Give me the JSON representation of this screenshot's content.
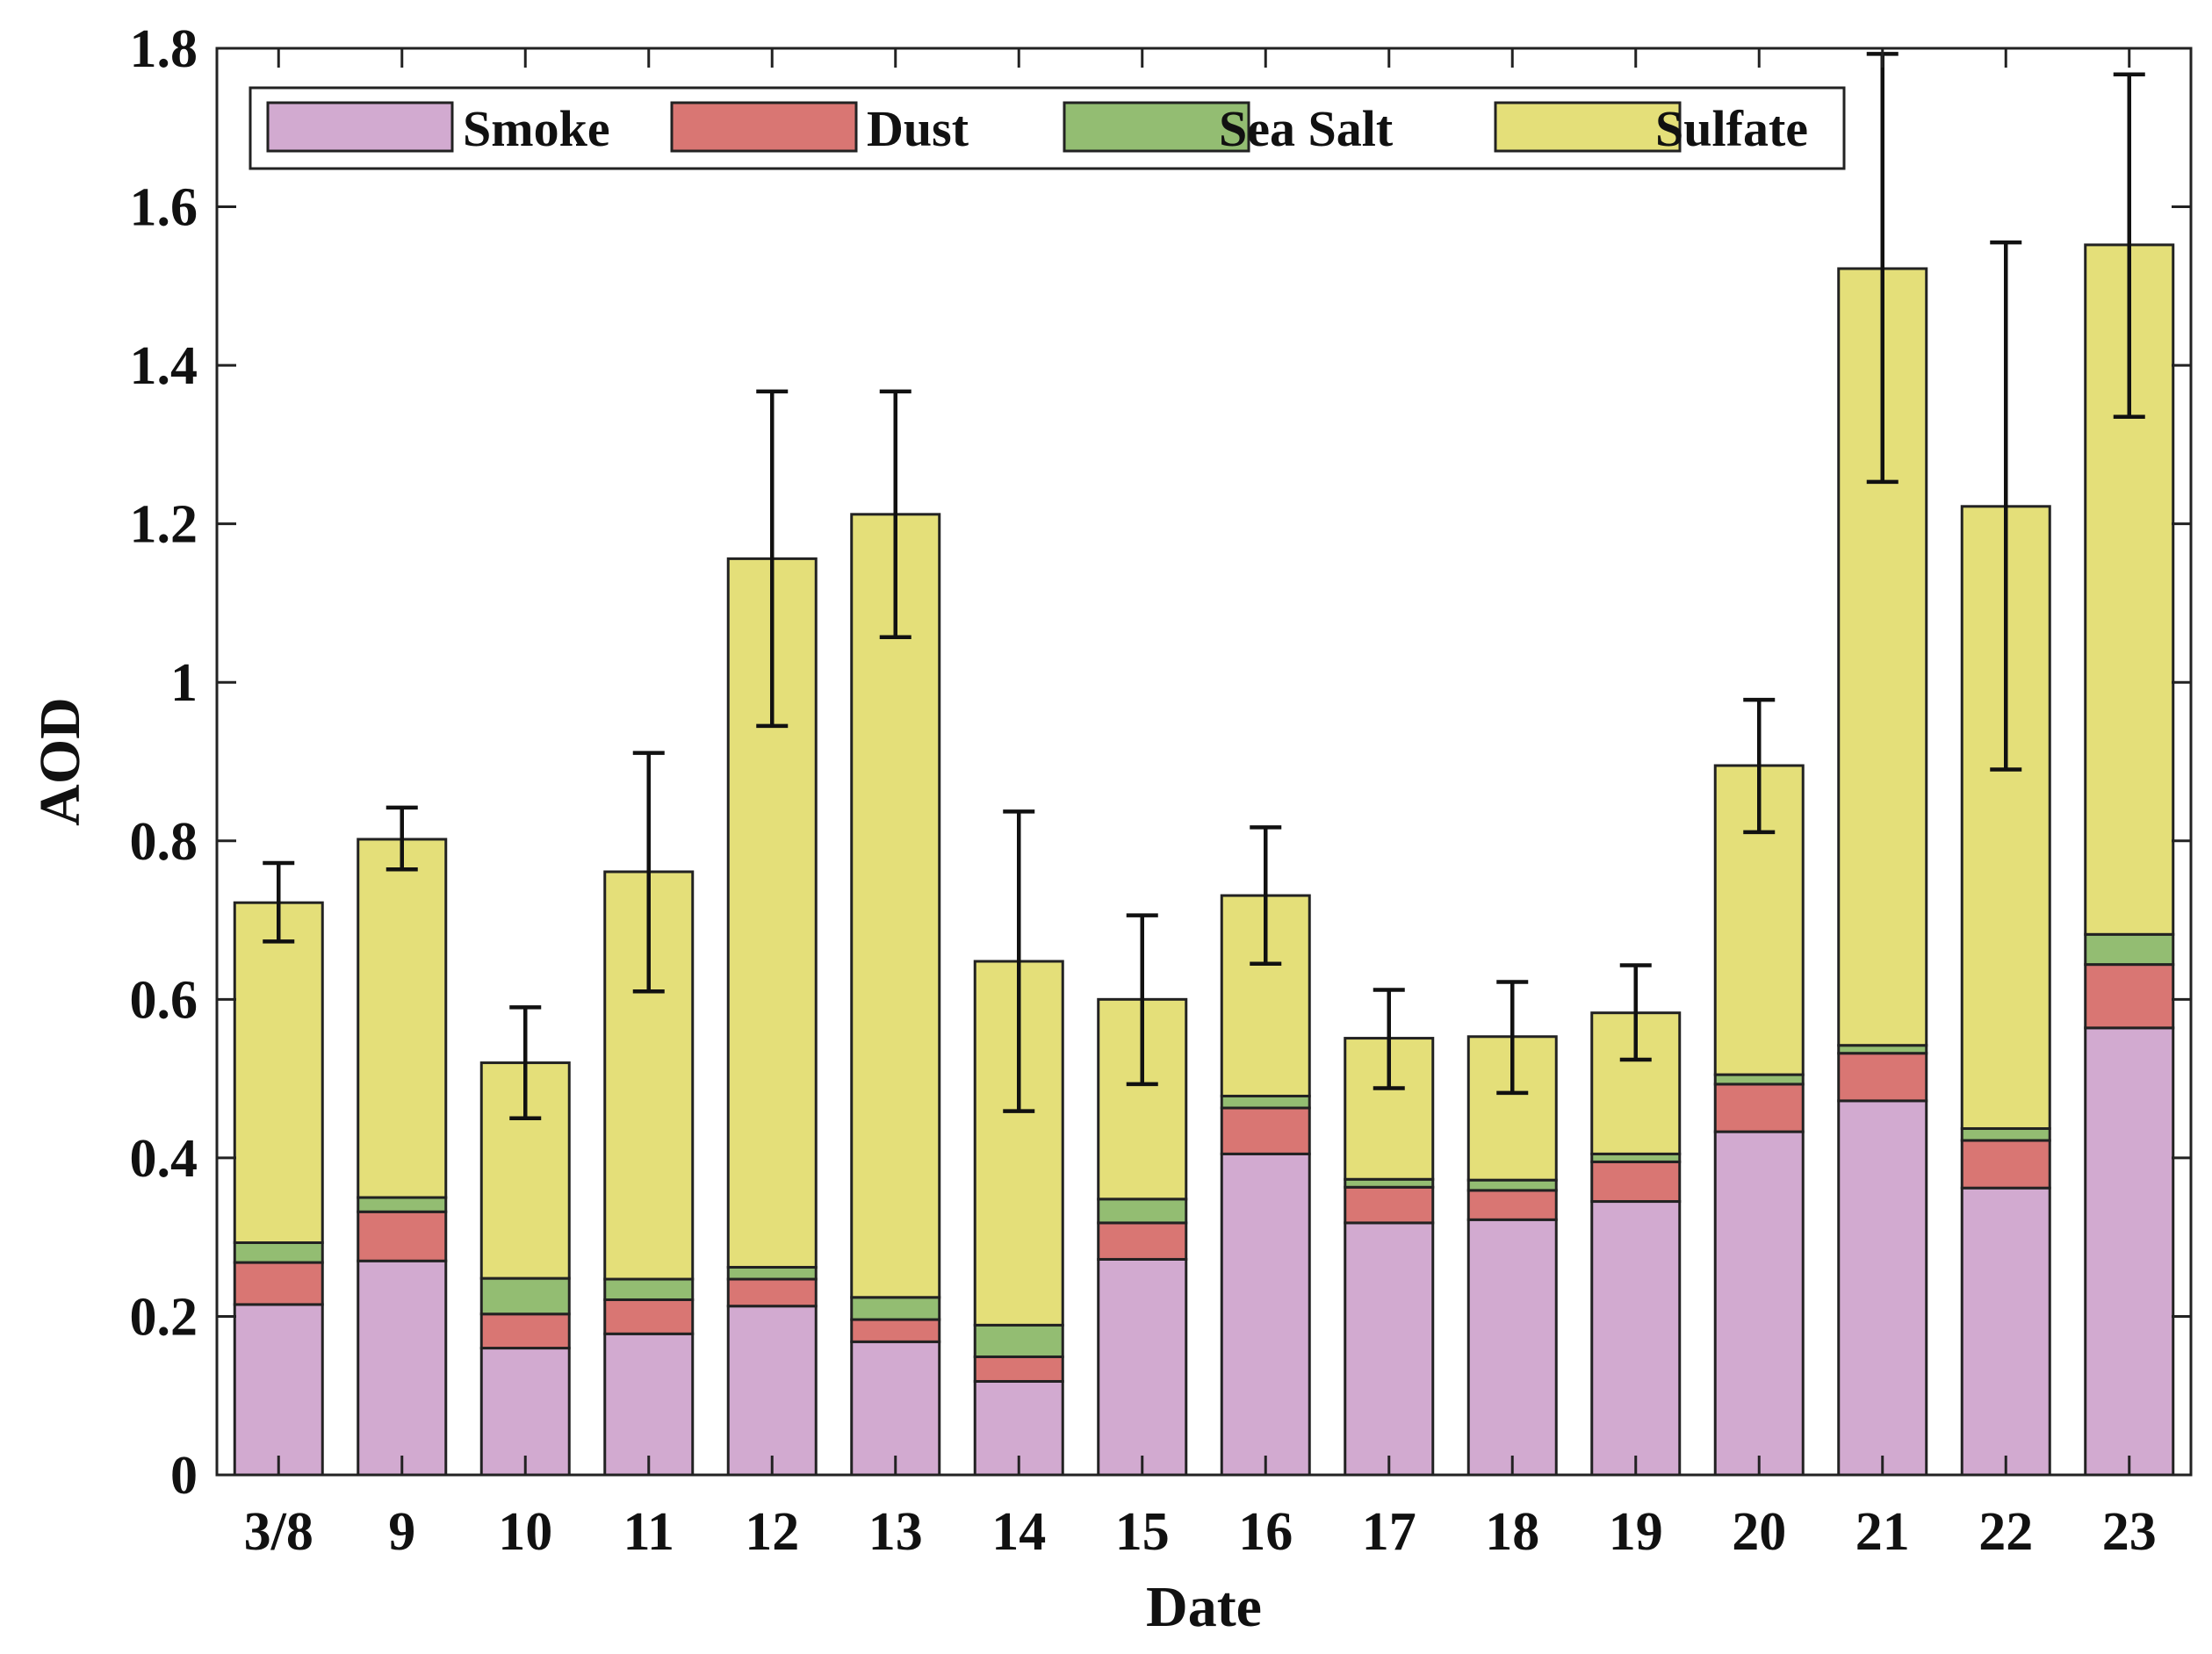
{
  "chart_data": {
    "type": "bar",
    "stacked": true,
    "title": "",
    "xlabel": "Date",
    "ylabel": "AOD",
    "ylim": [
      0,
      1.8
    ],
    "yticks": [
      0,
      0.2,
      0.4,
      0.6,
      0.8,
      1,
      1.2,
      1.4,
      1.6,
      1.8
    ],
    "ytick_labels": [
      "0",
      "0.2",
      "0.4",
      "0.6",
      "0.8",
      "1",
      "1.2",
      "1.4",
      "1.6",
      "1.8"
    ],
    "categories": [
      "3/8",
      "9",
      "10",
      "11",
      "12",
      "13",
      "14",
      "15",
      "16",
      "17",
      "18",
      "19",
      "20",
      "21",
      "22",
      "23"
    ],
    "grid": false,
    "legend_position": "top",
    "series": [
      {
        "name": "Smoke",
        "color": "#d2aad0",
        "values": [
          0.215,
          0.27,
          0.16,
          0.178,
          0.213,
          0.168,
          0.118,
          0.272,
          0.405,
          0.318,
          0.322,
          0.345,
          0.433,
          0.472,
          0.362,
          0.564
        ]
      },
      {
        "name": "Dust",
        "color": "#d97673",
        "values": [
          0.053,
          0.062,
          0.043,
          0.043,
          0.034,
          0.028,
          0.031,
          0.046,
          0.058,
          0.045,
          0.037,
          0.05,
          0.06,
          0.06,
          0.06,
          0.08
        ]
      },
      {
        "name": "Sea Salt",
        "color": "#93bd72",
        "values": [
          0.025,
          0.018,
          0.045,
          0.026,
          0.015,
          0.028,
          0.04,
          0.03,
          0.015,
          0.01,
          0.013,
          0.01,
          0.012,
          0.01,
          0.015,
          0.038
        ]
      },
      {
        "name": "Sulfate",
        "color": "#e4df79",
        "values": [
          0.429,
          0.452,
          0.272,
          0.514,
          0.894,
          0.988,
          0.459,
          0.252,
          0.253,
          0.178,
          0.181,
          0.178,
          0.39,
          0.98,
          0.785,
          0.87
        ]
      }
    ],
    "totals": [
      0.722,
      0.802,
      0.52,
      0.761,
      1.156,
      1.212,
      0.648,
      0.6,
      0.731,
      0.551,
      0.553,
      0.583,
      0.895,
      1.522,
      1.222,
      1.552
    ],
    "error_bars": {
      "low": [
        0.673,
        0.764,
        0.45,
        0.61,
        0.945,
        1.057,
        0.459,
        0.493,
        0.645,
        0.488,
        0.482,
        0.524,
        0.811,
        1.253,
        0.89,
        1.335
      ],
      "high": [
        0.772,
        0.842,
        0.59,
        0.911,
        1.367,
        1.367,
        0.837,
        0.706,
        0.817,
        0.612,
        0.622,
        0.643,
        0.978,
        1.793,
        1.555,
        1.767
      ]
    }
  }
}
